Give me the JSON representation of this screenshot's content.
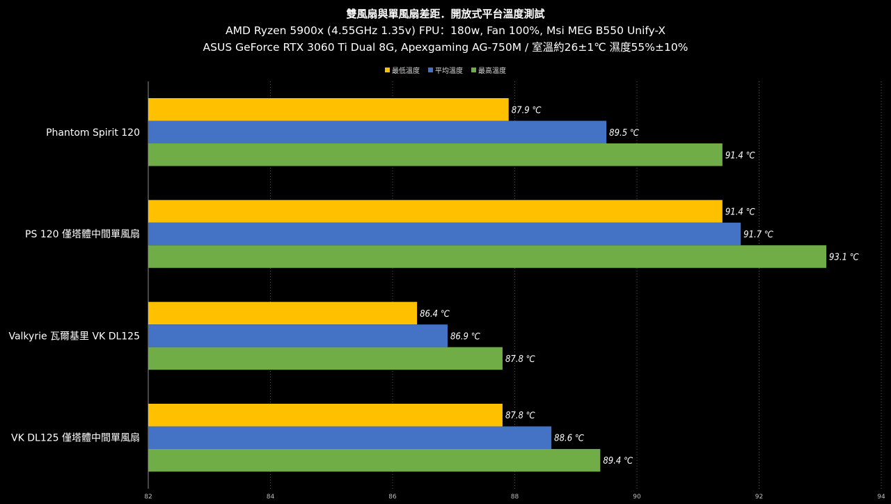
{
  "chart_data": {
    "type": "bar",
    "orientation": "horizontal",
    "title": "雙風扇與單風扇差距．開放式平台溫度測試",
    "subtitle_lines": [
      "AMD Ryzen 5900x (4.55GHz 1.35v) FPU：180w, Fan 100%, Msi MEG B550 Unify-X",
      "ASUS GeForce RTX 3060 Ti Dual 8G, Apexgaming AG-750M / 室溫約26±1℃ 濕度55%±10%"
    ],
    "categories": [
      "Phantom Spirit 120",
      "PS 120 僅塔體中間單風扇",
      "Valkyrie 瓦爾基里 VK DL125",
      "VK DL125 僅塔體中間單風扇"
    ],
    "series": [
      {
        "name": "最低溫度",
        "color": "#ffc000",
        "values": [
          87.9,
          91.4,
          86.4,
          87.8
        ]
      },
      {
        "name": "平均溫度",
        "color": "#4472c4",
        "values": [
          89.5,
          91.7,
          86.9,
          88.6
        ]
      },
      {
        "name": "最高溫度",
        "color": "#70ad47",
        "values": [
          91.4,
          93.1,
          87.8,
          89.4
        ]
      }
    ],
    "value_suffix": " ℃",
    "xlim": [
      82,
      94
    ],
    "xticks": [
      82,
      84,
      86,
      88,
      90,
      92,
      94
    ],
    "grid": true,
    "grid_style": "dotted-vertical",
    "legend_position": "top",
    "data_labels": true
  }
}
